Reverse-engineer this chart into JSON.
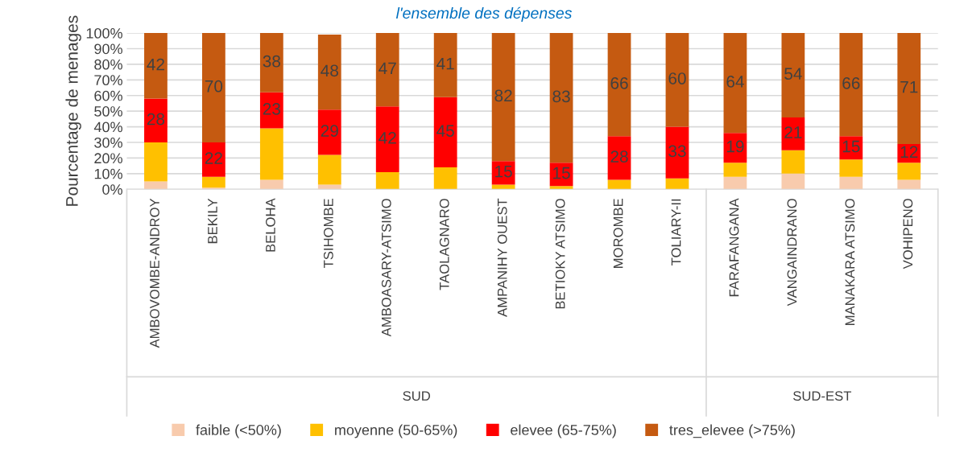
{
  "chart_data": {
    "type": "bar",
    "stacked": true,
    "title": "l'ensemble des dépenses",
    "ylabel": "Pourcentage de menages",
    "categories": [
      "AMBOVOMBE-ANDROY",
      "BEKILY",
      "BELOHA",
      "TSIHOMBE",
      "AMBOASARY-ATSIMO",
      "TAOLAGNARO",
      "AMPANIHY OUEST",
      "BETIOKY ATSIMO",
      "MOROMBE",
      "TOLIARY-II",
      "FARAFANGANA",
      "VANGAINDRANO",
      "MANAKARA ATSIMO",
      "VOHIPENO"
    ],
    "series": [
      {
        "name": "faible (<50%)",
        "color": "#f8cbad",
        "values": [
          5,
          1,
          6,
          3,
          0,
          0,
          0,
          0,
          0,
          0,
          8,
          10,
          8,
          6
        ]
      },
      {
        "name": "moyenne (50-65%)",
        "color": "#ffc000",
        "values": [
          25,
          7,
          33,
          19,
          11,
          14,
          3,
          2,
          6,
          7,
          9,
          15,
          11,
          11
        ]
      },
      {
        "name": "elevee (65-75%)",
        "color": "#ff0000",
        "values": [
          28,
          22,
          23,
          29,
          42,
          45,
          15,
          15,
          28,
          33,
          19,
          21,
          15,
          12
        ],
        "value_labels": [
          "28",
          "22",
          "23",
          "29",
          "42",
          "45",
          "15",
          "15",
          "28",
          "33",
          "19",
          "21",
          "15",
          "12"
        ]
      },
      {
        "name": "tres_elevee (>75%)",
        "color": "#c55a11",
        "values": [
          42,
          70,
          38,
          48,
          47,
          41,
          82,
          83,
          66,
          60,
          64,
          54,
          66,
          71
        ],
        "value_labels": [
          "42",
          "70",
          "38",
          "48",
          "47",
          "41",
          "82",
          "83",
          "66",
          "60",
          "64",
          "54",
          "66",
          "71"
        ]
      }
    ],
    "ylim": [
      0,
      100
    ],
    "yticks": [
      {
        "value": 0,
        "label": "0%"
      },
      {
        "value": 10,
        "label": "10%"
      },
      {
        "value": 20,
        "label": "20%"
      },
      {
        "value": 30,
        "label": "30%"
      },
      {
        "value": 40,
        "label": "40%"
      },
      {
        "value": 50,
        "label": "50%"
      },
      {
        "value": 60,
        "label": "60%"
      },
      {
        "value": 70,
        "label": "70%"
      },
      {
        "value": 80,
        "label": "80%"
      },
      {
        "value": 90,
        "label": "90%"
      },
      {
        "value": 100,
        "label": "100%"
      }
    ],
    "grid": "y",
    "legend": "bottom",
    "annotations": [
      "SUD",
      "SUD-EST"
    ]
  }
}
